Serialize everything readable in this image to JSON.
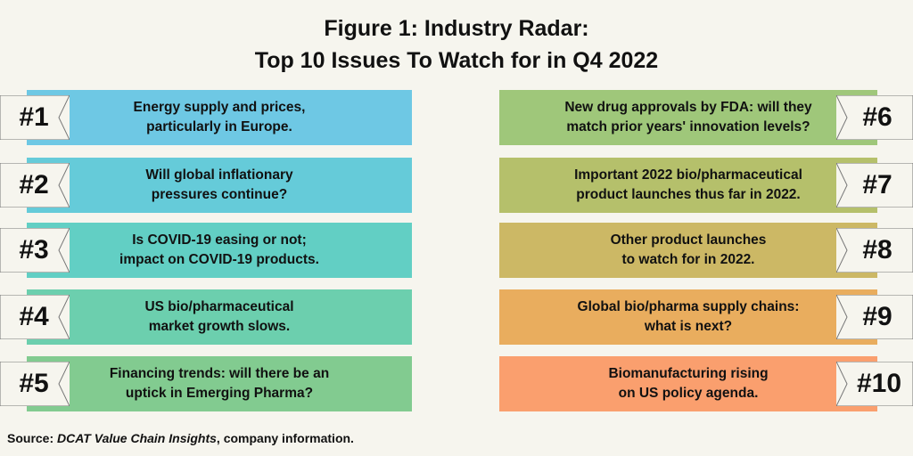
{
  "title": {
    "line1": "Figure 1: Industry Radar:",
    "line2": "Top 10 Issues To Watch for in Q4 2022"
  },
  "issues_left": [
    {
      "rank": "#1",
      "line1": "Energy supply and prices,",
      "line2": "particularly in Europe.",
      "color": "#6ec8e4"
    },
    {
      "rank": "#2",
      "line1": "Will global inflationary",
      "line2": "pressures continue?",
      "color": "#65cbd9"
    },
    {
      "rank": "#3",
      "line1": "Is COVID-19 easing or not;",
      "line2": "impact on COVID-19 products.",
      "color": "#62cfc4"
    },
    {
      "rank": "#4",
      "line1": "US bio/pharmaceutical",
      "line2": "market growth slows.",
      "color": "#6ccfae"
    },
    {
      "rank": "#5",
      "line1": "Financing trends: will there be an",
      "line2": "uptick in Emerging Pharma?",
      "color": "#82cb90"
    }
  ],
  "issues_right": [
    {
      "rank": "#6",
      "line1": "New drug approvals by FDA: will they",
      "line2": "match prior years' innovation levels?",
      "color": "#9fc77a"
    },
    {
      "rank": "#7",
      "line1": "Important 2022 bio/pharmaceutical",
      "line2": "product launches thus far in 2022.",
      "color": "#b5c06b"
    },
    {
      "rank": "#8",
      "line1": "Other product launches",
      "line2": "to watch for in 2022.",
      "color": "#ccb865"
    },
    {
      "rank": "#9",
      "line1": "Global bio/pharma supply chains:",
      "line2": "what is next?",
      "color": "#e9ad5e"
    },
    {
      "rank": "#10",
      "line1": "Biomanufacturing rising",
      "line2": "on US policy agenda.",
      "color": "#fa9f6e"
    }
  ],
  "source": {
    "prefix": "Source: ",
    "italic": "DCAT Value Chain Insights",
    "suffix": ", company information."
  }
}
